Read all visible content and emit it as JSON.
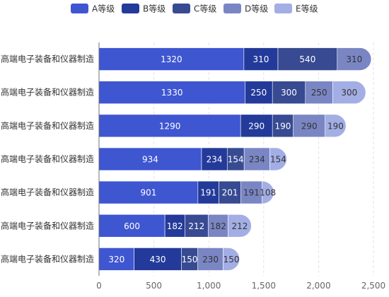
{
  "chart_data": {
    "type": "bar",
    "orientation": "horizontal",
    "stacked": true,
    "categories": [
      "高端电子装备和仪器制造",
      "高端电子装备和仪器制造",
      "高端电子装备和仪器制造",
      "高端电子装备和仪器制造",
      "高端电子装备和仪器制造",
      "高端电子装备和仪器制造",
      "高端电子装备和仪器制造"
    ],
    "series": [
      {
        "name": "A等级",
        "color": "#3f56d1",
        "values": [
          1320,
          1330,
          1290,
          934,
          901,
          600,
          320
        ]
      },
      {
        "name": "B等级",
        "color": "#233a9a",
        "values": [
          310,
          250,
          290,
          234,
          191,
          182,
          430
        ]
      },
      {
        "name": "C等级",
        "color": "#374a92",
        "values": [
          540,
          300,
          190,
          154,
          201,
          212,
          150
        ]
      },
      {
        "name": "D等级",
        "color": "#7a86c4",
        "values": [
          310,
          250,
          290,
          234,
          191,
          182,
          230
        ]
      },
      {
        "name": "E等级",
        "color": "#a3aee5",
        "values": [
          0,
          300,
          190,
          154,
          108,
          212,
          150
        ]
      }
    ],
    "xlim": [
      0,
      2500
    ],
    "xticks": [
      0,
      500,
      1000,
      1500,
      2000,
      2500
    ],
    "xtick_labels": [
      "0",
      "500",
      "1,000",
      "1,500",
      "2,000",
      "2,500"
    ],
    "title": "",
    "xlabel": "",
    "ylabel": "",
    "legend": "top-center",
    "grid": "vertical-dashed"
  }
}
